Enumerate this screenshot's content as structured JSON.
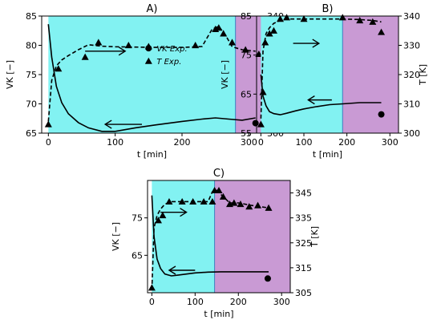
{
  "colors": {
    "phase1": "#82f2f2",
    "phase2": "#c99ad4",
    "ink": "#000000"
  },
  "legend": {
    "vk_label": "VK Exp.",
    "t_label": "T Exp."
  },
  "chart_data": [
    {
      "type": "line",
      "title": "A)",
      "xlabel": "t [min]",
      "ylabel_left": "VK [−]",
      "ylabel_right": "T [K]",
      "xlim": [
        -10,
        320
      ],
      "ylim_left": [
        65,
        85
      ],
      "ylim_right": [
        300,
        340
      ],
      "xticks": [
        0,
        100,
        200,
        300
      ],
      "yticks_left": [
        65,
        70,
        75,
        80,
        85
      ],
      "yticks_right": [
        300,
        310,
        320,
        330,
        340
      ],
      "phase_boundary": 280,
      "phase_end": 320,
      "legend": true,
      "vk_model": {
        "x": [
          0,
          5,
          12,
          20,
          30,
          45,
          60,
          80,
          100,
          130,
          160,
          200,
          230,
          250,
          270,
          290,
          310
        ],
        "y": [
          83.6,
          78,
          73,
          70.2,
          68.3,
          66.8,
          65.9,
          65.3,
          65.3,
          65.9,
          66.4,
          67.0,
          67.4,
          67.6,
          67.4,
          67.2,
          67.6
        ]
      },
      "vk_exp": {
        "x": [
          310
        ],
        "y": [
          66.7
        ]
      },
      "t_model": {
        "x": [
          0,
          5,
          12,
          20,
          30,
          45,
          60,
          80,
          100,
          130,
          160,
          200,
          230,
          245,
          255,
          265,
          275,
          290,
          310
        ],
        "y": [
          304,
          318,
          323,
          325,
          326.5,
          328.5,
          330.2,
          329.7,
          329.5,
          329.4,
          329.3,
          329.3,
          329.6,
          335.5,
          336.5,
          333.5,
          329.5,
          328.5,
          328
        ]
      },
      "t_exp": {
        "x": [
          0,
          15,
          55,
          75,
          120,
          150,
          220,
          250,
          255,
          262,
          275,
          295,
          315
        ],
        "y": [
          303,
          322,
          326,
          331,
          330,
          329.6,
          330,
          335.5,
          336,
          334,
          331,
          328.5,
          327
        ]
      },
      "arrows": [
        {
          "direction": "right",
          "x": [
            55,
            115
          ],
          "y_axis": "left",
          "y": 79
        },
        {
          "direction": "left",
          "x": [
            140,
            85
          ],
          "y_axis": "left",
          "y": 66.5
        }
      ]
    },
    {
      "type": "line",
      "title": "B)",
      "xlabel": "t [min]",
      "ylabel_left": "VK [−]",
      "ylabel_right": "T [K]",
      "xlim": [
        -10,
        320
      ],
      "ylim_left": [
        55,
        85
      ],
      "ylim_right": [
        300,
        340
      ],
      "xticks": [
        0,
        100,
        200,
        300
      ],
      "yticks_left": [
        55,
        65,
        75,
        85
      ],
      "yticks_right": [
        300,
        310,
        320,
        330,
        340
      ],
      "phase_boundary": 190,
      "phase_end": 320,
      "legend": false,
      "vk_model": {
        "x": [
          0,
          5,
          12,
          20,
          30,
          45,
          60,
          80,
          100,
          130,
          160,
          190,
          230,
          280
        ],
        "y": [
          70,
          64.5,
          62,
          60.5,
          60,
          59.7,
          60.1,
          60.7,
          61.2,
          61.8,
          62.3,
          62.5,
          62.8,
          62.8
        ]
      },
      "vk_exp": {
        "x": [
          280
        ],
        "y": [
          59.8
        ]
      },
      "t_model": {
        "x": [
          0,
          5,
          12,
          20,
          30,
          45,
          60,
          80,
          100,
          130,
          160,
          190,
          230,
          260,
          280
        ],
        "y": [
          305,
          328,
          334,
          336,
          337.5,
          338.5,
          339,
          339,
          339,
          339,
          339,
          339,
          338.8,
          338.5,
          338
        ]
      },
      "t_exp": {
        "x": [
          0,
          5,
          10,
          20,
          30,
          45,
          60,
          100,
          190,
          230,
          260,
          280
        ],
        "y": [
          303,
          314,
          331,
          334,
          335,
          339,
          339.5,
          339,
          339.5,
          338.5,
          338,
          334.5
        ]
      },
      "arrows": [
        {
          "direction": "right",
          "x": [
            75,
            135
          ],
          "y_axis": "left",
          "y": 78
        },
        {
          "direction": "left",
          "x": [
            165,
            110
          ],
          "y_axis": "left",
          "y": 63.5
        }
      ]
    },
    {
      "type": "line",
      "title": "C)",
      "xlabel": "t [min]",
      "ylabel_left": "VK [−]",
      "ylabel_right": "T [K]",
      "xlim": [
        -10,
        320
      ],
      "ylim_left": [
        55,
        85
      ],
      "ylim_right": [
        305,
        350
      ],
      "xticks": [
        0,
        100,
        200,
        300
      ],
      "yticks_left": [
        65,
        75
      ],
      "yticks_right": [
        305,
        315,
        325,
        335,
        345
      ],
      "phase_boundary": 145,
      "phase_end": 320,
      "legend": false,
      "vk_model": {
        "x": [
          0,
          5,
          12,
          20,
          30,
          45,
          60,
          80,
          100,
          130,
          160,
          200,
          270
        ],
        "y": [
          81,
          70,
          64,
          61.5,
          60,
          59.5,
          59.7,
          60.0,
          60.3,
          60.5,
          60.6,
          60.6,
          60.6
        ]
      },
      "vk_exp": {
        "x": [
          268
        ],
        "y": [
          58.8
        ]
      },
      "t_model": {
        "x": [
          0,
          5,
          12,
          20,
          30,
          45,
          60,
          80,
          100,
          130,
          140,
          150,
          165,
          180,
          200,
          230,
          270
        ],
        "y": [
          306,
          331,
          336,
          338.5,
          340.5,
          341.5,
          341.5,
          341.5,
          341.5,
          341.5,
          345.5,
          346,
          343.5,
          341,
          341,
          340,
          339
        ]
      },
      "t_exp": {
        "x": [
          0,
          15,
          25,
          40,
          70,
          95,
          120,
          140,
          145,
          155,
          165,
          180,
          190,
          205,
          225,
          245,
          270
        ],
        "y": [
          307,
          334,
          336,
          341.5,
          341.5,
          341.5,
          341.5,
          341.5,
          346,
          346,
          343.5,
          340.5,
          341,
          340.5,
          339.5,
          340,
          339
        ]
      },
      "arrows": [
        {
          "direction": "right",
          "x": [
            20,
            80
          ],
          "y_axis": "left",
          "y": 76.5
        },
        {
          "direction": "left",
          "x": [
            100,
            40
          ],
          "y_axis": "left",
          "y": 61
        }
      ]
    }
  ]
}
